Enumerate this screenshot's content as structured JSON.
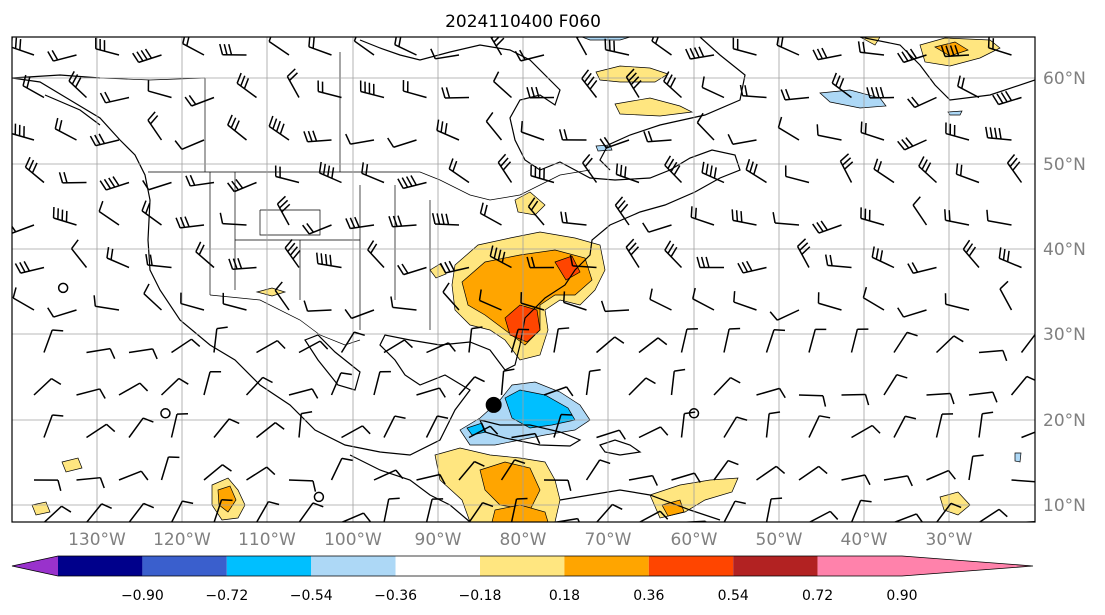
{
  "title": "2024110400 F060",
  "map": {
    "lon_range": [
      -140,
      -20
    ],
    "lat_range": [
      7,
      65
    ],
    "gridlines": true,
    "lat_labels": [
      "10°N",
      "20°N",
      "30°N",
      "40°N",
      "50°N",
      "60°N"
    ],
    "lon_labels": [
      "130°W",
      "120°W",
      "110°W",
      "100°W",
      "90°W",
      "80°W",
      "70°W",
      "60°W",
      "50°W",
      "40°W",
      "30°W"
    ],
    "storm_marker": {
      "lon": -83.5,
      "lat": 21.0
    },
    "calm_circles": [
      {
        "lon": -134,
        "lat": 35
      },
      {
        "lon": -122,
        "lat": 20
      },
      {
        "lon": -104,
        "lat": 10
      },
      {
        "lon": -60,
        "lat": 20
      }
    ]
  },
  "colorbar": {
    "extend": "both",
    "tick_labels": [
      "−0.90",
      "−0.72",
      "−0.54",
      "−0.36",
      "−0.18",
      "0.18",
      "0.36",
      "0.54",
      "0.72",
      "0.90"
    ],
    "colors": [
      "#9932cc",
      "#00008b",
      "#3a5fcd",
      "#00bfff",
      "#add8f6",
      "#ffffff",
      "#ffe680",
      "#ffa500",
      "#ff4500",
      "#b22222",
      "#ff82ab"
    ]
  }
}
